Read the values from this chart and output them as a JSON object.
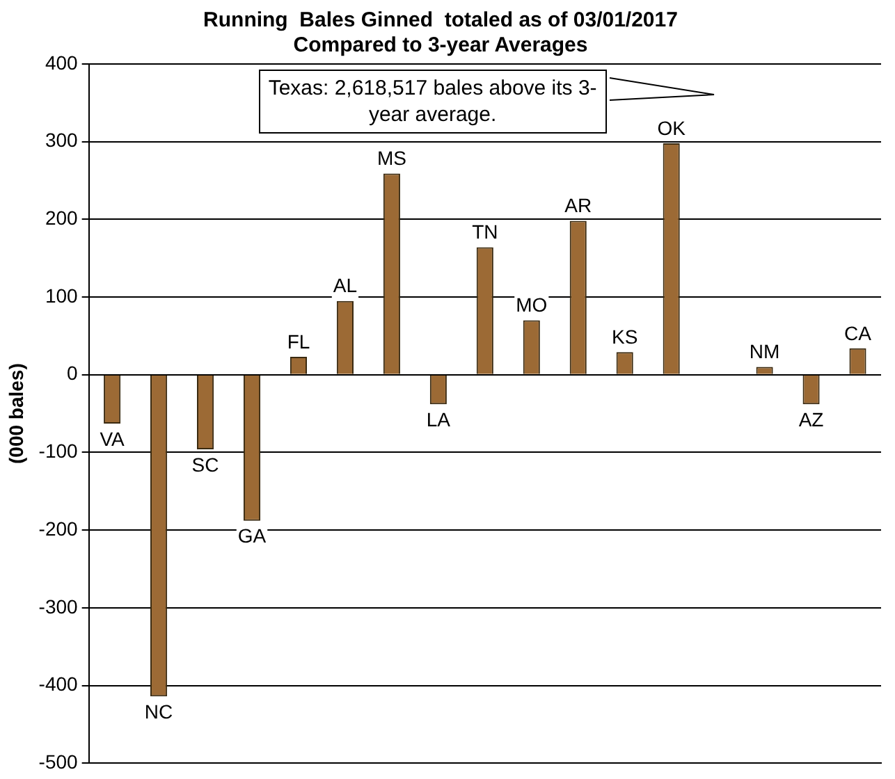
{
  "chart_data": {
    "type": "bar",
    "title": "Running  Bales Ginned  totaled as of 03/01/2017",
    "subtitle": "Compared to 3-year Averages",
    "ylabel": "(000 bales)",
    "categories": [
      "VA",
      "NC",
      "SC",
      "GA",
      "FL",
      "AL",
      "MS",
      "LA",
      "TN",
      "MO",
      "AR",
      "KS",
      "OK",
      null,
      "NM",
      "AZ",
      "CA"
    ],
    "values": [
      -63,
      -414,
      -96,
      -188,
      23,
      95,
      259,
      -38,
      164,
      70,
      198,
      29,
      298,
      null,
      10,
      -38,
      34
    ],
    "color": "#9c6a35",
    "ylim": [
      -500,
      400
    ],
    "yticks": [
      -500,
      -400,
      -300,
      -200,
      -100,
      0,
      100,
      200,
      300,
      400
    ],
    "grid": "y",
    "legend": false,
    "tick_labels": "y",
    "annotations": [
      "Texas: 2,618,517 bales above its 3-year average."
    ]
  }
}
